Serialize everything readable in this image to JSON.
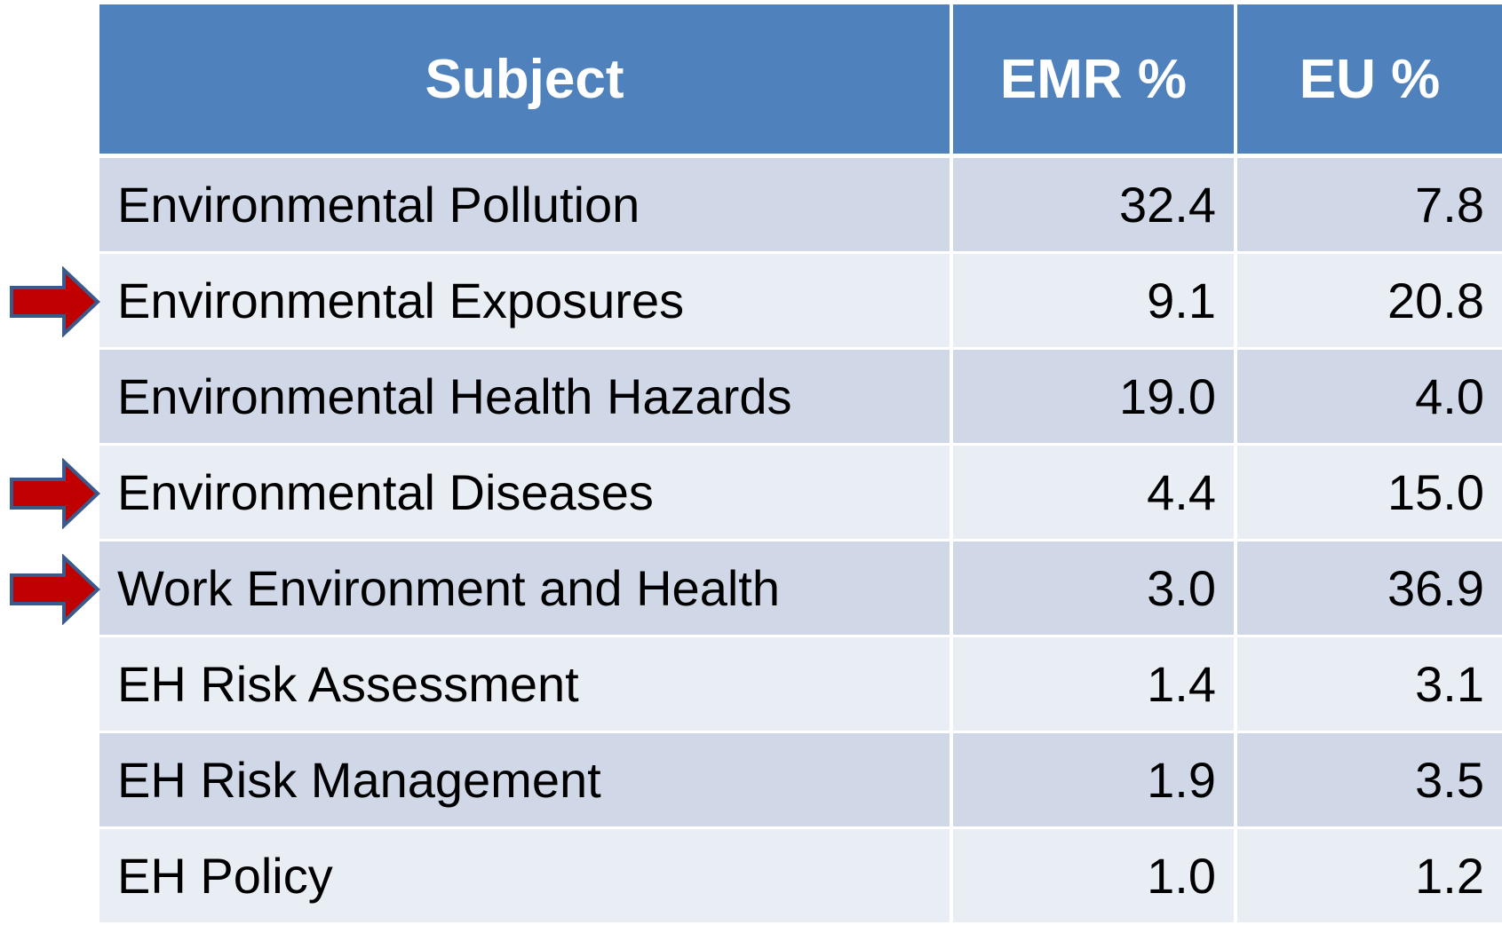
{
  "table": {
    "header": [
      "Subject",
      "EMR %",
      "EU %"
    ],
    "rows": [
      [
        "Environmental Pollution",
        "32.4",
        "7.8"
      ],
      [
        "Environmental Exposures",
        "9.1",
        "20.8"
      ],
      [
        "Environmental Health Hazards",
        "19.0",
        "4.0"
      ],
      [
        "Environmental Diseases",
        "4.4",
        "15.0"
      ],
      [
        "Work Environment and Health",
        "3.0",
        "36.9"
      ],
      [
        "EH Risk Assessment",
        "1.4",
        "3.1"
      ],
      [
        "EH Risk Management",
        "1.9",
        "3.5"
      ],
      [
        "EH Policy",
        "1.0",
        "1.2"
      ]
    ]
  }
}
